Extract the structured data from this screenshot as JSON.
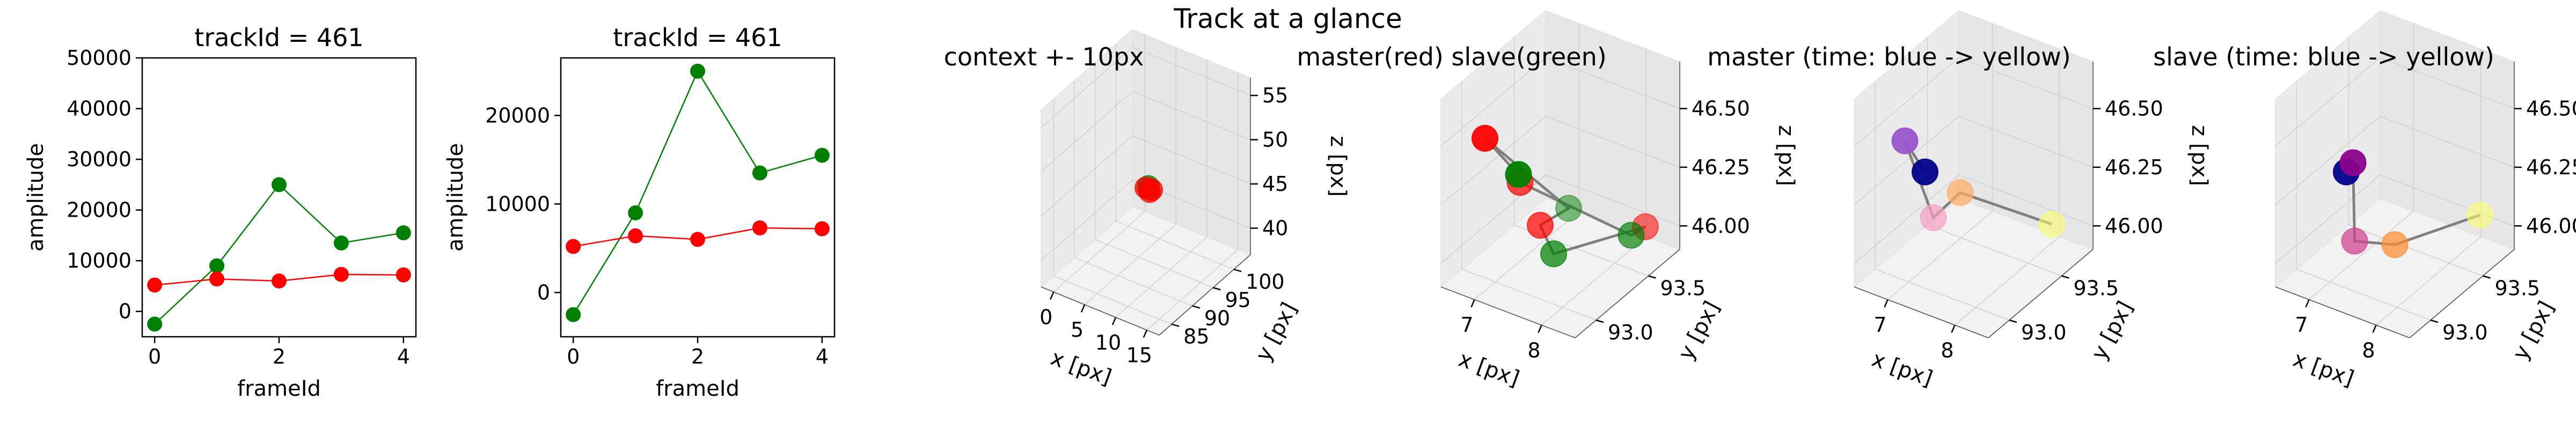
{
  "figure": {
    "suptitle": "Track at a glance"
  },
  "colors": {
    "master": "#ff0000",
    "slave": "#008000",
    "track_line": "#808080",
    "time_start": "#00008b",
    "time_mid_purple": "#8b008b",
    "time_end": "#ffff66"
  },
  "chart_data": [
    {
      "type": "line",
      "title": "trackId = 461",
      "xlabel": "frameId",
      "ylabel": "amplitude",
      "xlim": [
        -0.2,
        4.2
      ],
      "ylim": [
        -5000,
        50000
      ],
      "xticks": [
        0,
        2,
        4
      ],
      "yticks": [
        0,
        10000,
        20000,
        30000,
        40000,
        50000
      ],
      "series": [
        {
          "color": "#008000",
          "x": [
            0,
            1,
            2,
            3,
            4
          ],
          "values": [
            -2500,
            9000,
            25000,
            13500,
            15500
          ]
        },
        {
          "color": "#ff0000",
          "x": [
            0,
            1,
            2,
            3,
            4
          ],
          "values": [
            5200,
            6400,
            6000,
            7300,
            7200
          ]
        }
      ]
    },
    {
      "type": "line",
      "title": "trackId = 461",
      "xlabel": "frameId",
      "ylabel": "amplitude",
      "xlim": [
        -0.2,
        4.2
      ],
      "ylim": [
        -5000,
        26500
      ],
      "xticks": [
        0,
        2,
        4
      ],
      "yticks": [
        0,
        10000,
        20000
      ],
      "series": [
        {
          "color": "#008000",
          "x": [
            0,
            1,
            2,
            3,
            4
          ],
          "values": [
            -2500,
            9000,
            25000,
            13500,
            15500
          ]
        },
        {
          "color": "#ff0000",
          "x": [
            0,
            1,
            2,
            3,
            4
          ],
          "values": [
            5200,
            6400,
            6000,
            7300,
            7200
          ]
        }
      ]
    },
    {
      "type": "scatter",
      "title": "context +- 10px",
      "xlabel": "x [px]",
      "ylabel": "y [px]",
      "zlabel": "z [px]",
      "xlim": [
        -2,
        17
      ],
      "ylim": [
        82,
        104
      ],
      "zlim": [
        37,
        57
      ],
      "xticks": [
        0,
        5,
        10,
        15
      ],
      "yticks": [
        85,
        90,
        95,
        100
      ],
      "zticks": [
        40,
        45,
        50,
        55
      ],
      "points": [
        {
          "x": 7.3,
          "y": 93.3,
          "z": 46.2,
          "color": "#ff0000"
        },
        {
          "x": 7.7,
          "y": 93.5,
          "z": 46.1,
          "color": "#008000"
        },
        {
          "x": 8.0,
          "y": 93.2,
          "z": 46.0,
          "color": "#ff0000"
        },
        {
          "x": 7.5,
          "y": 93.6,
          "z": 46.3,
          "color": "#008000"
        },
        {
          "x": 8.2,
          "y": 93.4,
          "z": 46.2,
          "color": "#ff0000"
        }
      ]
    },
    {
      "type": "scatter",
      "title": "master(red) slave(green)",
      "xlabel": "x [px]",
      "ylabel": "y [px]",
      "zlabel": "z [px]",
      "xlim": [
        6.5,
        8.5
      ],
      "ylim": [
        92.8,
        93.8
      ],
      "zlim": [
        45.9,
        46.7
      ],
      "xticks": [
        7,
        8
      ],
      "yticks": [
        93.0,
        93.5
      ],
      "zticks": [
        46.0,
        46.25,
        46.5
      ],
      "tick_labels": {
        "y": [
          "93.0",
          "93.5"
        ],
        "z": [
          "46.00",
          "46.25",
          "46.50"
        ]
      },
      "line_order": [
        0,
        1,
        2,
        3,
        4,
        5,
        6,
        7,
        0
      ],
      "points": [
        {
          "x": 7.0,
          "y": 92.9,
          "z": 46.55,
          "color": "#ff0000"
        },
        {
          "x": 7.5,
          "y": 92.9,
          "z": 46.45,
          "color": "#008000"
        },
        {
          "x": 6.9,
          "y": 93.3,
          "z": 46.2,
          "color": "#ff0000"
        },
        {
          "x": 8.4,
          "y": 93.4,
          "z": 46.1,
          "color": "#008000"
        },
        {
          "x": 8.3,
          "y": 93.6,
          "z": 46.05,
          "color": "#ff0000"
        },
        {
          "x": 7.4,
          "y": 93.3,
          "z": 45.95,
          "color": "#008000"
        },
        {
          "x": 7.2,
          "y": 93.3,
          "z": 46.05,
          "color": "#ff0000"
        },
        {
          "x": 7.0,
          "y": 93.7,
          "z": 45.95,
          "color": "#008000"
        }
      ]
    },
    {
      "type": "scatter",
      "title": "master (time: blue -> yellow)",
      "xlabel": "x [px]",
      "ylabel": "y [px]",
      "zlabel": "z [px]",
      "xlim": [
        6.5,
        8.5
      ],
      "ylim": [
        92.8,
        93.8
      ],
      "zlim": [
        45.9,
        46.7
      ],
      "xticks": [
        7,
        8
      ],
      "yticks": [
        93.0,
        93.5
      ],
      "zticks": [
        46.0,
        46.25,
        46.5
      ],
      "tick_labels": {
        "y": [
          "93.0",
          "93.5"
        ],
        "z": [
          "46.00",
          "46.25",
          "46.50"
        ]
      },
      "line_order": [
        0,
        1,
        2,
        3,
        4
      ],
      "points": [
        {
          "x": 7.4,
          "y": 92.9,
          "z": 46.45,
          "color": "#00008b"
        },
        {
          "x": 7.1,
          "y": 92.9,
          "z": 46.55,
          "color": "#9a55cc"
        },
        {
          "x": 6.9,
          "y": 93.3,
          "z": 46.05,
          "color": "#f4a0c0"
        },
        {
          "x": 7.3,
          "y": 93.3,
          "z": 46.2,
          "color": "#ffaa66"
        },
        {
          "x": 8.2,
          "y": 93.6,
          "z": 46.05,
          "color": "#ffff66"
        }
      ]
    },
    {
      "type": "scatter",
      "title": "slave (time: blue -> yellow)",
      "xlabel": "x [px]",
      "ylabel": "y [px]",
      "zlabel": "z [px]",
      "xlim": [
        6.5,
        8.5
      ],
      "ylim": [
        92.8,
        93.8
      ],
      "zlim": [
        45.9,
        46.7
      ],
      "xticks": [
        7,
        8
      ],
      "yticks": [
        93.0,
        93.5
      ],
      "zticks": [
        46.0,
        46.25,
        46.5
      ],
      "tick_labels": {
        "y": [
          "93.0",
          "93.5"
        ],
        "z": [
          "46.00",
          "46.25",
          "46.50"
        ]
      },
      "line_order": [
        0,
        1,
        2,
        3,
        4
      ],
      "points": [
        {
          "x": 7.4,
          "y": 92.9,
          "z": 46.45,
          "color": "#00008b"
        },
        {
          "x": 7.5,
          "y": 92.9,
          "z": 46.5,
          "color": "#8b008b"
        },
        {
          "x": 6.9,
          "y": 93.3,
          "z": 45.95,
          "color": "#d04090"
        },
        {
          "x": 7.5,
          "y": 93.3,
          "z": 46.0,
          "color": "#ff8c30"
        },
        {
          "x": 8.3,
          "y": 93.6,
          "z": 46.1,
          "color": "#ffff66"
        }
      ]
    }
  ]
}
